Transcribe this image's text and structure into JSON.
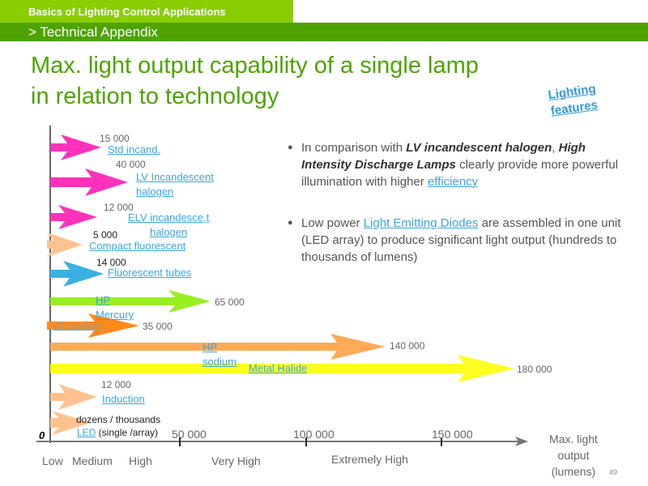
{
  "header": {
    "course": "Basics of Lighting Control Applications",
    "section": "> Technical Appendix"
  },
  "title": {
    "line1": "Max. light output capability of a single lamp",
    "line2": "in relation to technology"
  },
  "features_link": {
    "line1": "Lighting",
    "line2": "features"
  },
  "lamps": [
    {
      "name": "Std incand.",
      "value": "15 000",
      "color": "#ff33bb"
    },
    {
      "name": "LV Incandescent",
      "name2": "halogen",
      "value": "40 000",
      "color": "#ff33bb"
    },
    {
      "name": "ELV incandesce,t",
      "name2": "halogen",
      "value": "12 000",
      "color": "#ff33bb"
    },
    {
      "name": "Compact fluorescent",
      "value": "5 000",
      "color": "#ffc28f"
    },
    {
      "name": "Fluorescent tubes",
      "value": "14 000",
      "color": "#3bb0e2"
    },
    {
      "name": "HP",
      "name2": "Mercury",
      "value": "65 000",
      "color": "#99ee22"
    },
    {
      "name": "LP sodium",
      "value": "35 000",
      "color": "#ff8a1a"
    },
    {
      "name": "HP",
      "name2": "sodium",
      "value": "140 000",
      "color": "#ffaa55"
    },
    {
      "name": "Metal Halide",
      "value": "180 000",
      "color": "#ffff22"
    },
    {
      "name": "Induction",
      "value": "12 000",
      "color": "#ffc28f"
    },
    {
      "name": "LED",
      "name_suffix": " (single /array)",
      "value": "dozens / thousands",
      "color": "#ffc28f"
    }
  ],
  "axis": {
    "origin": "0",
    "ticks": [
      "50 000",
      "100 000",
      "150 000"
    ],
    "title_lines": [
      "Max. light",
      "output",
      "(lumens)"
    ],
    "categories": [
      "Low",
      "Medium",
      "High",
      "Very High",
      "Extremely High"
    ]
  },
  "bullets": [
    {
      "pre": "In comparison with ",
      "b1": "LV incandescent halogen",
      "mid": ", ",
      "b2": "High Intensity Discharge Lamps",
      "mid2": " clearly provide more powerful illumination with higher ",
      "link": "efficiency"
    },
    {
      "pre": "Low power ",
      "link": "Light Emitting Diodes",
      "post": " are assembled in one unit (LED array) to produce significant light output (hundreds to thousands of lumens)"
    }
  ],
  "bullet_symbol": "●",
  "page_number": "49"
}
